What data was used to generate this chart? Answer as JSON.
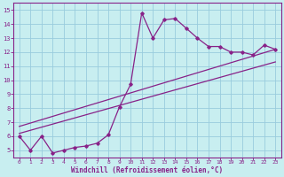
{
  "xlabel": "Windchill (Refroidissement éolien,°C)",
  "bg_color": "#c8eef0",
  "line_color": "#882288",
  "grid_color": "#99ccdd",
  "wiggly_x": [
    0,
    1,
    2,
    3,
    4,
    5,
    6,
    7,
    8,
    9,
    10,
    11,
    12,
    13,
    14,
    15,
    16,
    17,
    18,
    19,
    20,
    21,
    22,
    23
  ],
  "wiggly_y": [
    6.0,
    5.0,
    6.0,
    4.8,
    5.0,
    5.2,
    5.3,
    5.5,
    6.1,
    8.1,
    9.7,
    14.8,
    13.0,
    14.3,
    14.4,
    13.7,
    13.0,
    12.4,
    12.4,
    12.0,
    12.0,
    11.8,
    12.5,
    12.2
  ],
  "line1_x": [
    0,
    23
  ],
  "line1_y": [
    6.2,
    11.3
  ],
  "line2_x": [
    0,
    23
  ],
  "line2_y": [
    6.7,
    12.2
  ],
  "yticks": [
    5,
    6,
    7,
    8,
    9,
    10,
    11,
    12,
    13,
    14,
    15
  ],
  "xticks": [
    0,
    1,
    2,
    3,
    4,
    5,
    6,
    7,
    8,
    9,
    10,
    11,
    12,
    13,
    14,
    15,
    16,
    17,
    18,
    19,
    20,
    21,
    22,
    23
  ]
}
